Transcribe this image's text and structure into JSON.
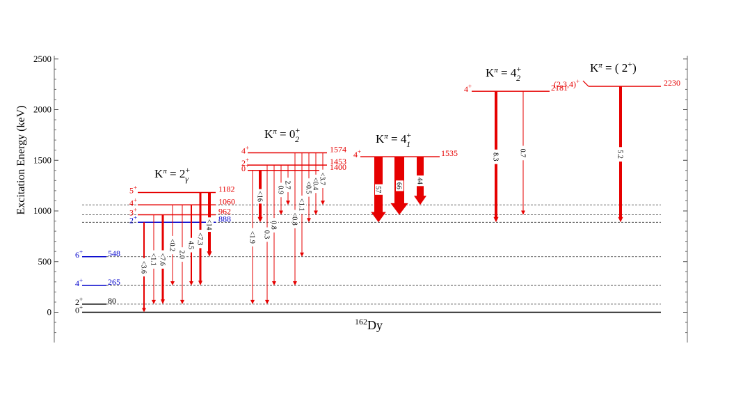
{
  "colors": {
    "red": "#e60000",
    "blue": "#0000cc",
    "black": "#000000"
  },
  "axis": {
    "ylabel": "Excitation Energy (keV)",
    "ylim": [
      -300,
      2600
    ],
    "ticks": [
      0,
      500,
      1000,
      1500,
      2000,
      2500
    ]
  },
  "nucleus": {
    "mass": "162",
    "symbol": "Dy"
  },
  "ground_band": [
    {
      "spin": "0+",
      "energy": 0,
      "label": "",
      "color": "black"
    },
    {
      "spin": "2+",
      "energy": 80,
      "label": "80",
      "color": "black"
    },
    {
      "spin": "4+",
      "energy": 265,
      "label": "265",
      "color": "blue"
    },
    {
      "spin": "6+",
      "energy": 548,
      "label": "548",
      "color": "blue"
    }
  ],
  "dashed_levels": [
    80,
    265,
    548,
    888,
    962,
    1060
  ],
  "bands": [
    {
      "id": "gamma",
      "title": {
        "k": "K",
        "pi": "π",
        "eq": " = 2",
        "sup": "+",
        "sub": "γ"
      },
      "levels": [
        {
          "spin": "2+",
          "energy": 888,
          "label": "888",
          "color": "blue"
        },
        {
          "spin": "3+",
          "energy": 962,
          "label": "962",
          "color": "red"
        },
        {
          "spin": "4+",
          "energy": 1060,
          "label": "1060",
          "color": "red"
        },
        {
          "spin": "5+",
          "energy": 1182,
          "label": "1182",
          "color": "red"
        }
      ],
      "transitions": [
        {
          "from": 888,
          "to": 0,
          "label": "<3.6",
          "width": 2
        },
        {
          "from": 962,
          "to": 80,
          "label": "<1.1",
          "width": 1
        },
        {
          "from": 962,
          "to": 80,
          "label": "<7.6",
          "width": 3
        },
        {
          "from": 1060,
          "to": 265,
          "label": "<0.2",
          "width": 1
        },
        {
          "from": 1060,
          "to": 80,
          "label": "2.0",
          "width": 1
        },
        {
          "from": 1060,
          "to": 265,
          "label": "4.5",
          "width": 2
        },
        {
          "from": 1182,
          "to": 265,
          "label": "<7.3",
          "width": 3
        },
        {
          "from": 1182,
          "to": 548,
          "label": "<14",
          "width": 4
        }
      ]
    },
    {
      "id": "beta",
      "title": {
        "k": "K",
        "pi": "π",
        "eq": " = 0",
        "sup": "+",
        "sub": "2"
      },
      "levels": [
        {
          "spin": "0+",
          "energy": 1400,
          "label": "1400",
          "color": "red"
        },
        {
          "spin": "2+",
          "energy": 1453,
          "label": "1453",
          "color": "red"
        },
        {
          "spin": "4+",
          "energy": 1574,
          "label": "1574",
          "color": "red"
        }
      ],
      "transitions": [
        {
          "from": 1400,
          "to": 80,
          "label": "<1.9",
          "width": 1
        },
        {
          "from": 1400,
          "to": 888,
          "label": "<16",
          "width": 4
        },
        {
          "from": 1453,
          "to": 80,
          "label": "0.3",
          "width": 1
        },
        {
          "from": 1453,
          "to": 265,
          "label": "0.8",
          "width": 1
        },
        {
          "from": 1453,
          "to": 962,
          "label": "0.9",
          "width": 1
        },
        {
          "from": 1453,
          "to": 1060,
          "label": "2.7",
          "width": 1
        },
        {
          "from": 1574,
          "to": 265,
          "label": "<0.8",
          "width": 1
        },
        {
          "from": 1574,
          "to": 548,
          "label": "<1.1",
          "width": 1
        },
        {
          "from": 1574,
          "to": 888,
          "label": "<0.5",
          "width": 1
        },
        {
          "from": 1574,
          "to": 962,
          "label": "<0.4",
          "width": 1
        },
        {
          "from": 1574,
          "to": 1060,
          "label": "<3.7",
          "width": 1
        }
      ]
    },
    {
      "id": "k4a",
      "title": {
        "k": "K",
        "pi": "π",
        "eq": " = 4",
        "sup": "+",
        "sub": "1"
      },
      "levels": [
        {
          "spin": "4+",
          "energy": 1535,
          "label": "1535",
          "color": "red"
        }
      ],
      "transitions": [
        {
          "from": 1535,
          "to": 888,
          "label": "57",
          "width": 12
        },
        {
          "from": 1535,
          "to": 962,
          "label": "66",
          "width": 14
        },
        {
          "from": 1535,
          "to": 1060,
          "label": "44",
          "width": 10
        }
      ]
    },
    {
      "id": "k4b",
      "title": {
        "k": "K",
        "pi": "π",
        "eq": " = 4",
        "sup": "+",
        "sub": "2"
      },
      "levels": [
        {
          "spin": "4+",
          "energy": 2181,
          "label": "2181",
          "color": "red"
        }
      ],
      "transitions": [
        {
          "from": 2181,
          "to": 888,
          "label": "8.3",
          "width": 4
        },
        {
          "from": 2181,
          "to": 962,
          "label": "0.7",
          "width": 1
        }
      ]
    },
    {
      "id": "k2",
      "title": {
        "k": "K",
        "pi": "π",
        "eq": " = ( 2",
        "sup": "+",
        "sub": "",
        "close": ")"
      },
      "levels": [
        {
          "spin": "(2,3,4)+",
          "energy": 2230,
          "label": "2230",
          "color": "red"
        }
      ],
      "transitions": [
        {
          "from": 2230,
          "to": 888,
          "label": "5.2",
          "width": 4
        }
      ]
    }
  ]
}
